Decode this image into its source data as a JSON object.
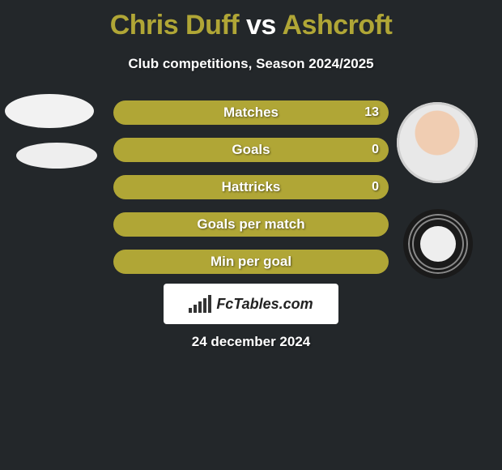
{
  "header": {
    "title_left": "Chris Duff",
    "title_vs": "vs",
    "title_right": "Ashcroft",
    "subtitle": "Club competitions, Season 2024/2025"
  },
  "colors": {
    "accent": "#b0a636",
    "bar_fill": "#b0a636",
    "background": "#23272a",
    "text": "#ffffff"
  },
  "comparison": {
    "rows": [
      {
        "label": "Matches",
        "left": "",
        "right": "13",
        "fill_pct": 100
      },
      {
        "label": "Goals",
        "left": "",
        "right": "0",
        "fill_pct": 100
      },
      {
        "label": "Hattricks",
        "left": "",
        "right": "0",
        "fill_pct": 100
      },
      {
        "label": "Goals per match",
        "left": "",
        "right": "",
        "fill_pct": 100
      },
      {
        "label": "Min per goal",
        "left": "",
        "right": "",
        "fill_pct": 100
      }
    ]
  },
  "branding": {
    "site_name": "FcTables.com"
  },
  "footer": {
    "date": "24 december 2024"
  }
}
